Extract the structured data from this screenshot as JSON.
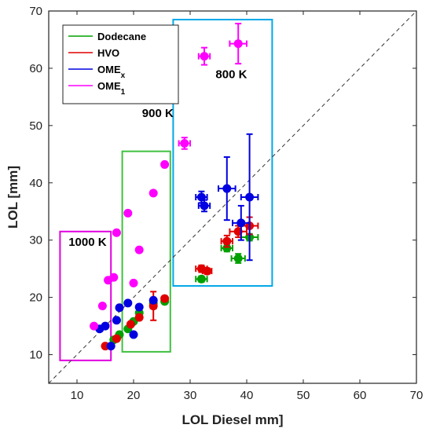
{
  "chart_data": {
    "type": "scatter",
    "xlabel": "LOL Diesel mm]",
    "ylabel": "LOL [mm]",
    "xlim": [
      5,
      70
    ],
    "ylim": [
      5,
      70
    ],
    "xticks": [
      10,
      20,
      30,
      40,
      50,
      60,
      70
    ],
    "yticks": [
      10,
      20,
      30,
      40,
      50,
      60,
      70
    ],
    "grid": false,
    "legend_position": "top-left",
    "reference_line": {
      "from": [
        5,
        5
      ],
      "to": [
        70,
        70
      ],
      "style": "dashed"
    },
    "series": [
      {
        "name": "Dodecane",
        "color": "#00a000",
        "points": [
          {
            "x": 16.5,
            "y": 12.6
          },
          {
            "x": 17.5,
            "y": 13.5
          },
          {
            "x": 19,
            "y": 14.5
          },
          {
            "x": 20,
            "y": 15.8
          },
          {
            "x": 21,
            "y": 17.3
          },
          {
            "x": 23.5,
            "y": 19.0
          },
          {
            "x": 25.5,
            "y": 19.3
          },
          {
            "x": 32,
            "y": 23.2,
            "xerr": 1.0,
            "yerr": 0.5
          },
          {
            "x": 36.5,
            "y": 28.6,
            "xerr": 1.0,
            "yerr": 0.6
          },
          {
            "x": 38.5,
            "y": 26.8,
            "xerr": 1.2,
            "yerr": 0.8
          },
          {
            "x": 40.5,
            "y": 30.5,
            "xerr": 1.5,
            "yerr": 0.6
          }
        ]
      },
      {
        "name": "HVO",
        "color": "#e00000",
        "points": [
          {
            "x": 15,
            "y": 11.5
          },
          {
            "x": 17,
            "y": 12.8
          },
          {
            "x": 19.5,
            "y": 15.3
          },
          {
            "x": 21,
            "y": 16.5
          },
          {
            "x": 23.5,
            "y": 18.5,
            "xerr": 0.5,
            "yerr": 2.5
          },
          {
            "x": 25.5,
            "y": 19.8
          },
          {
            "x": 32,
            "y": 25.0,
            "xerr": 1.0,
            "yerr": 0.6
          },
          {
            "x": 33,
            "y": 24.6,
            "xerr": 0.8,
            "yerr": 0.5
          },
          {
            "x": 36.5,
            "y": 29.8,
            "xerr": 1.0,
            "yerr": 1.0
          },
          {
            "x": 38.5,
            "y": 31.5,
            "xerr": 1.5,
            "yerr": 1.0
          },
          {
            "x": 40.5,
            "y": 32.5,
            "xerr": 1.5,
            "yerr": 1.5
          }
        ]
      },
      {
        "name": "OME_x",
        "color": "#0000e0",
        "points": [
          {
            "x": 14,
            "y": 14.5
          },
          {
            "x": 15,
            "y": 15.0
          },
          {
            "x": 16,
            "y": 11.5
          },
          {
            "x": 17,
            "y": 16.0
          },
          {
            "x": 17.5,
            "y": 18.2
          },
          {
            "x": 19,
            "y": 19.0
          },
          {
            "x": 20,
            "y": 13.5
          },
          {
            "x": 21,
            "y": 18.3
          },
          {
            "x": 23.5,
            "y": 19.5
          },
          {
            "x": 32,
            "y": 37.5,
            "xerr": 1.0,
            "yerr": 1.0
          },
          {
            "x": 32.5,
            "y": 36.0,
            "xerr": 1.0,
            "yerr": 1.0
          },
          {
            "x": 36.5,
            "y": 39.0,
            "xerr": 1.5,
            "yerr": 5.5
          },
          {
            "x": 39,
            "y": 33.0,
            "xerr": 1.5,
            "yerr": 3.0
          },
          {
            "x": 40.5,
            "y": 37.5,
            "xerr": 1.5,
            "yerr": 11.0
          }
        ]
      },
      {
        "name": "OME_1",
        "color": "#ff00ff",
        "points": [
          {
            "x": 13,
            "y": 15.0
          },
          {
            "x": 14.5,
            "y": 18.5
          },
          {
            "x": 15.5,
            "y": 23.0
          },
          {
            "x": 16.5,
            "y": 23.5
          },
          {
            "x": 17,
            "y": 31.3
          },
          {
            "x": 19,
            "y": 34.7
          },
          {
            "x": 20,
            "y": 22.5
          },
          {
            "x": 21,
            "y": 28.3
          },
          {
            "x": 23.5,
            "y": 38.2
          },
          {
            "x": 25.5,
            "y": 43.2
          },
          {
            "x": 29,
            "y": 46.9,
            "xerr": 1.0,
            "yerr": 1.0
          },
          {
            "x": 32.5,
            "y": 62.1,
            "xerr": 1.0,
            "yerr": 1.5
          },
          {
            "x": 38.5,
            "y": 64.3,
            "xerr": 1.5,
            "yerr": 3.5
          }
        ]
      }
    ],
    "regions": [
      {
        "label": "1000 K",
        "color": "#e000e0",
        "x0": 7,
        "x1": 16,
        "y0": 9,
        "y1": 31.5
      },
      {
        "label": "900 K",
        "color": "#40c040",
        "x0": 18,
        "x1": 26.5,
        "y0": 10.5,
        "y1": 45.5
      },
      {
        "label": "800 K",
        "color": "#00a8e8",
        "x0": 27,
        "x1": 44.5,
        "y0": 22,
        "y1": 68.5
      }
    ],
    "annotations": [
      {
        "text": "1000 K",
        "x": 8.5,
        "y": 29.0
      },
      {
        "text": "900 K",
        "x": 21.5,
        "y": 51.5
      },
      {
        "text": "800 K",
        "x": 34.5,
        "y": 58.3
      }
    ]
  }
}
